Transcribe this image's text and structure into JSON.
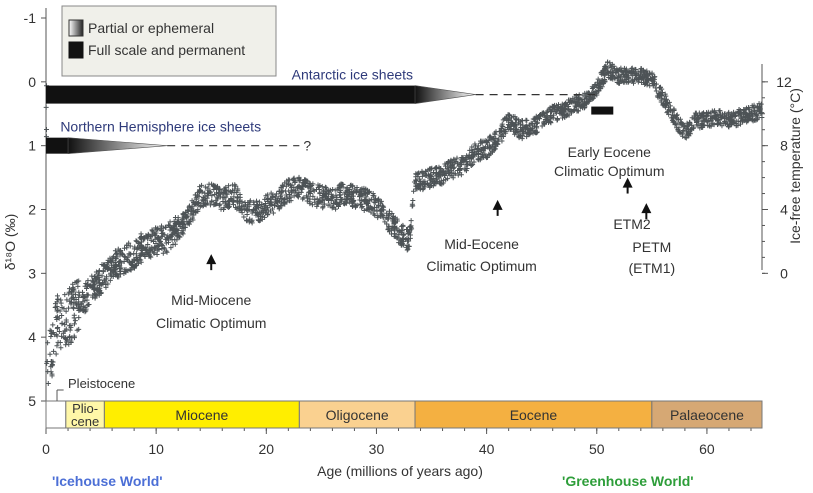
{
  "chart_data": {
    "type": "scatter",
    "xlabel": "Age (millions of years ago)",
    "ylabel": "δ¹⁸O (‰)",
    "ylabel_right": "Ice-free temperature (°C)",
    "xlim": [
      0,
      65
    ],
    "ylim": [
      -1,
      5
    ],
    "y_inverted": true,
    "x_ticks": [
      0,
      10,
      20,
      30,
      40,
      50,
      60
    ],
    "y_ticks": [
      -1,
      0,
      1,
      2,
      3,
      4,
      5
    ],
    "right_ticks": [
      {
        "label": "12",
        "d18o": 0.0
      },
      {
        "label": "8",
        "d18o": 1.0
      },
      {
        "label": "4",
        "d18o": 2.0
      },
      {
        "label": "0",
        "d18o": 3.0
      }
    ],
    "series_color": "#4d5356",
    "trend": [
      [
        0.05,
        4.6
      ],
      [
        0.5,
        4.2
      ],
      [
        1,
        3.8
      ],
      [
        2,
        3.7
      ],
      [
        3,
        3.5
      ],
      [
        4,
        3.3
      ],
      [
        5,
        3.1
      ],
      [
        6,
        2.9
      ],
      [
        7,
        2.8
      ],
      [
        8,
        2.7
      ],
      [
        9,
        2.55
      ],
      [
        10,
        2.5
      ],
      [
        11,
        2.45
      ],
      [
        12,
        2.3
      ],
      [
        13,
        2.1
      ],
      [
        14,
        1.8
      ],
      [
        15,
        1.75
      ],
      [
        16,
        1.85
      ],
      [
        17,
        1.75
      ],
      [
        18,
        2.0
      ],
      [
        19,
        2.05
      ],
      [
        20,
        1.95
      ],
      [
        21,
        1.85
      ],
      [
        22,
        1.7
      ],
      [
        23,
        1.65
      ],
      [
        24,
        1.75
      ],
      [
        25,
        1.8
      ],
      [
        26,
        1.85
      ],
      [
        27,
        1.75
      ],
      [
        28,
        1.8
      ],
      [
        29,
        1.85
      ],
      [
        30,
        1.95
      ],
      [
        31,
        2.15
      ],
      [
        32,
        2.35
      ],
      [
        33,
        2.5
      ],
      [
        33.5,
        1.55
      ],
      [
        34,
        1.55
      ],
      [
        35,
        1.5
      ],
      [
        36,
        1.45
      ],
      [
        37,
        1.35
      ],
      [
        38,
        1.3
      ],
      [
        39,
        1.1
      ],
      [
        40,
        1.05
      ],
      [
        41,
        0.9
      ],
      [
        42,
        0.6
      ],
      [
        43,
        0.75
      ],
      [
        44,
        0.75
      ],
      [
        45,
        0.6
      ],
      [
        46,
        0.5
      ],
      [
        47,
        0.45
      ],
      [
        48,
        0.35
      ],
      [
        49,
        0.3
      ],
      [
        50,
        0.1
      ],
      [
        51,
        -0.2
      ],
      [
        52,
        -0.1
      ],
      [
        53,
        -0.1
      ],
      [
        54,
        -0.1
      ],
      [
        55,
        -0.05
      ],
      [
        56,
        0.25
      ],
      [
        57,
        0.55
      ],
      [
        58,
        0.8
      ],
      [
        59,
        0.6
      ],
      [
        60,
        0.6
      ],
      [
        61,
        0.55
      ],
      [
        62,
        0.6
      ],
      [
        63,
        0.55
      ],
      [
        64,
        0.5
      ],
      [
        65,
        0.45
      ]
    ],
    "ice_sheets": [
      {
        "name": "Antarctic ice sheets",
        "permanent_to": 33.5,
        "partial_to": 39,
        "dashed_to": 50,
        "d18o": 0.2
      },
      {
        "name": "Northern Hemisphere ice sheets",
        "permanent_to": 2,
        "partial_to": 11,
        "dashed_to": 23,
        "d18o": 1.0,
        "question": "?"
      }
    ],
    "legend": {
      "partial": "Partial or ephemeral",
      "permanent": "Full scale and permanent",
      "position": "top-left"
    },
    "annotations": [
      {
        "label_lines": [
          "Mid-Miocene",
          "Climatic Optimum"
        ],
        "x": 15,
        "arrow_from": 2.95,
        "arrow_to": 2.7
      },
      {
        "label_lines": [
          "Mid-Eocene",
          "Climatic Optimum"
        ],
        "x": 41,
        "arrow_from": 2.1,
        "arrow_to": 1.85
      },
      {
        "label_lines": [
          "Early Eocene",
          "Climatic Optimum"
        ],
        "x": 51.5,
        "arrow_from": 1.75,
        "arrow_to": 1.5
      },
      {
        "label_lines": [
          "ETM2"
        ],
        "x": 53.2,
        "arrow_from": 2.1,
        "arrow_to": 1.85
      },
      {
        "label_lines": [
          "PETM",
          "(ETM1)"
        ],
        "x": 55,
        "arrow_from": null,
        "arrow_to": null
      }
    ],
    "optimum_bar": {
      "x_from": 49.5,
      "x_to": 51.5,
      "d18o": 0.45
    },
    "epochs": [
      {
        "label": "Pleistocene",
        "from": 0,
        "to": 1.8,
        "color": "#ffffff"
      },
      {
        "label_lines": [
          "Plio-",
          "cene"
        ],
        "from": 1.8,
        "to": 5.3,
        "color": "#fff7a8"
      },
      {
        "label": "Miocene",
        "from": 5.3,
        "to": 23,
        "color": "#ffee00"
      },
      {
        "label": "Oligocene",
        "from": 23,
        "to": 33.5,
        "color": "#fad190"
      },
      {
        "label": "Eocene",
        "from": 33.5,
        "to": 55,
        "color": "#f4b041"
      },
      {
        "label": "Palaeocene",
        "from": 55,
        "to": 65,
        "color": "#d6a874"
      }
    ],
    "world_labels": [
      {
        "label": "'Icehouse World'",
        "color": "#4c6fd6"
      },
      {
        "label": "'Greenhouse World'",
        "color": "#2e9e3a"
      }
    ]
  }
}
